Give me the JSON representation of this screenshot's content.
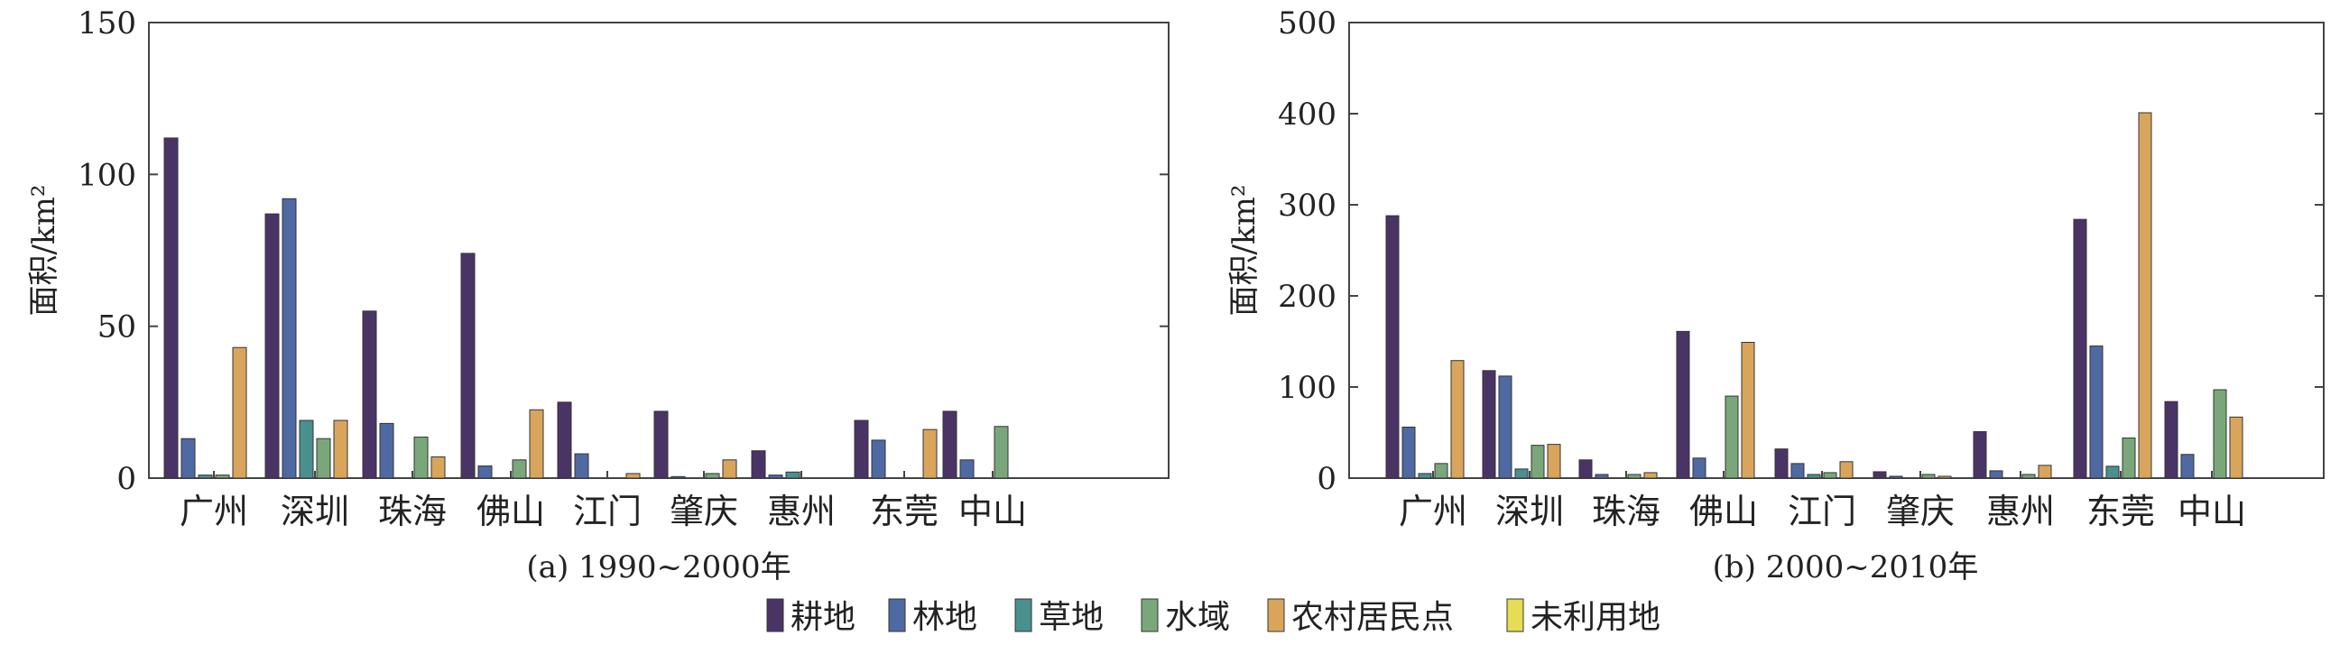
{
  "colors": {
    "耕地": "#4a3466",
    "林地": "#4f69a3",
    "草地": "#4a908f",
    "水域": "#7aa77a",
    "农村居民点": "#d9a55c",
    "未利用地": "#e6dd55"
  },
  "legend": [
    "耕地",
    "林地",
    "草地",
    "水域",
    "农村居民点",
    "未利用地"
  ],
  "chart_data": [
    {
      "type": "bar",
      "title": "(a) 1990~2000年",
      "ylabel": "面积/km²",
      "ylim": [
        0,
        150
      ],
      "yticks": [
        "0",
        "50",
        "100",
        "150"
      ],
      "categories": [
        "广州",
        "深圳",
        "珠海",
        "佛山",
        "江门",
        "肇庆",
        "惠州",
        "东莞",
        "中山"
      ],
      "series": [
        {
          "name": "耕地",
          "values": [
            112,
            87,
            55,
            74,
            25,
            22,
            9,
            19,
            22
          ]
        },
        {
          "name": "林地",
          "values": [
            13,
            92,
            18,
            4,
            8,
            0.5,
            1,
            12.5,
            6
          ]
        },
        {
          "name": "草地",
          "values": [
            1,
            19,
            0,
            0,
            0,
            0,
            2,
            0,
            0
          ]
        },
        {
          "name": "水域",
          "values": [
            1,
            13,
            13.5,
            6,
            0,
            1.5,
            0,
            0,
            17
          ]
        },
        {
          "name": "农村居民点",
          "values": [
            43,
            19,
            7,
            22.5,
            1.5,
            6,
            0,
            16,
            0
          ]
        },
        {
          "name": "未利用地",
          "values": [
            0,
            0,
            0,
            0,
            0,
            0,
            0,
            0,
            0
          ]
        }
      ]
    },
    {
      "type": "bar",
      "title": "(b) 2000~2010年",
      "ylabel": "面积/km²",
      "ylim": [
        0,
        500
      ],
      "yticks": [
        "0",
        "100",
        "200",
        "300",
        "400",
        "500"
      ],
      "categories": [
        "广州",
        "深圳",
        "珠海",
        "佛山",
        "江门",
        "肇庆",
        "惠州",
        "东莞",
        "中山"
      ],
      "series": [
        {
          "name": "耕地",
          "values": [
            288,
            118,
            20,
            161,
            32,
            7,
            51,
            284,
            84
          ]
        },
        {
          "name": "林地",
          "values": [
            56,
            112,
            4,
            22,
            16,
            2,
            8,
            145,
            26
          ]
        },
        {
          "name": "草地",
          "values": [
            5,
            10,
            0,
            0,
            4,
            0,
            0,
            13,
            0
          ]
        },
        {
          "name": "水域",
          "values": [
            16,
            36,
            4,
            90,
            6,
            4,
            4,
            44,
            97
          ]
        },
        {
          "name": "农村居民点",
          "values": [
            129,
            37,
            6,
            149,
            18,
            2,
            14,
            401,
            67
          ]
        },
        {
          "name": "未利用地",
          "values": [
            0,
            0,
            0,
            0,
            0,
            0,
            0,
            0,
            0
          ]
        }
      ]
    }
  ]
}
